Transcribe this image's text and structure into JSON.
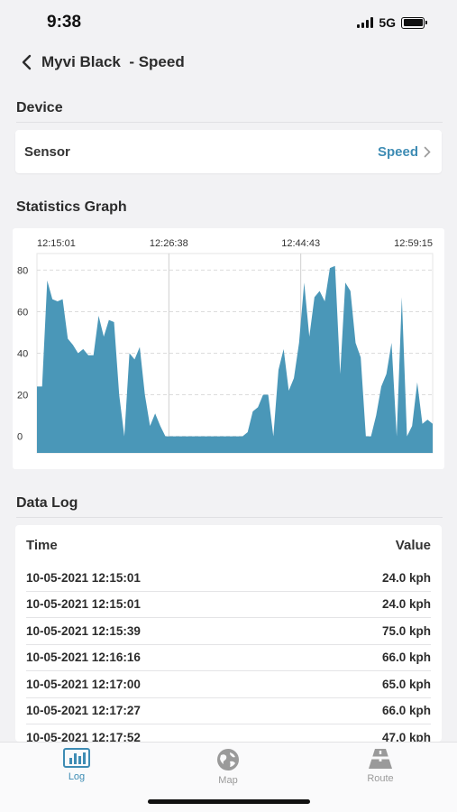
{
  "status": {
    "time": "9:38",
    "network": "5G"
  },
  "nav": {
    "title": "Myvi Black  - Speed"
  },
  "device": {
    "section_title": "Device",
    "sensor_label": "Sensor",
    "sensor_value": "Speed"
  },
  "graph": {
    "section_title": "Statistics Graph"
  },
  "chart_data": {
    "type": "area",
    "x_tick_labels": [
      "12:15:01",
      "12:26:38",
      "12:44:43",
      "12:59:15"
    ],
    "y_ticks": [
      0,
      20,
      40,
      60,
      80
    ],
    "ylim": [
      -8,
      88
    ],
    "grid": "horizontal dashed",
    "color": "#4a97b8",
    "values": [
      24,
      24,
      75,
      66,
      65,
      66,
      47,
      44,
      40,
      42,
      39,
      39,
      58,
      48,
      56,
      55,
      20,
      0,
      40,
      37,
      43,
      20,
      5,
      11,
      5,
      0,
      0,
      0,
      0,
      0,
      0,
      0,
      0,
      0,
      0,
      0,
      0,
      0,
      0,
      0,
      0,
      2,
      12,
      14,
      20,
      20,
      0,
      32,
      42,
      22,
      28,
      45,
      74,
      48,
      67,
      70,
      65,
      81,
      82,
      30,
      74,
      70,
      45,
      38,
      0,
      0,
      10,
      24,
      30,
      45,
      0,
      67,
      0,
      5,
      26,
      6,
      8,
      6
    ]
  },
  "log": {
    "section_title": "Data Log",
    "col_time": "Time",
    "col_value": "Value",
    "rows": [
      {
        "time": "10-05-2021 12:15:01",
        "value": "24.0 kph"
      },
      {
        "time": "10-05-2021 12:15:01",
        "value": "24.0 kph"
      },
      {
        "time": "10-05-2021 12:15:39",
        "value": "75.0 kph"
      },
      {
        "time": "10-05-2021 12:16:16",
        "value": "66.0 kph"
      },
      {
        "time": "10-05-2021 12:17:00",
        "value": "65.0 kph"
      },
      {
        "time": "10-05-2021 12:17:27",
        "value": "66.0 kph"
      },
      {
        "time": "10-05-2021 12:17:52",
        "value": "47.0 kph"
      }
    ]
  },
  "tabs": [
    {
      "label": "Log",
      "icon": "bar-chart-icon",
      "active": true
    },
    {
      "label": "Map",
      "icon": "globe-icon",
      "active": false
    },
    {
      "label": "Route",
      "icon": "road-icon",
      "active": false
    }
  ],
  "colors": {
    "accent": "#3e8cb4",
    "chart_fill": "#4a97b8"
  }
}
